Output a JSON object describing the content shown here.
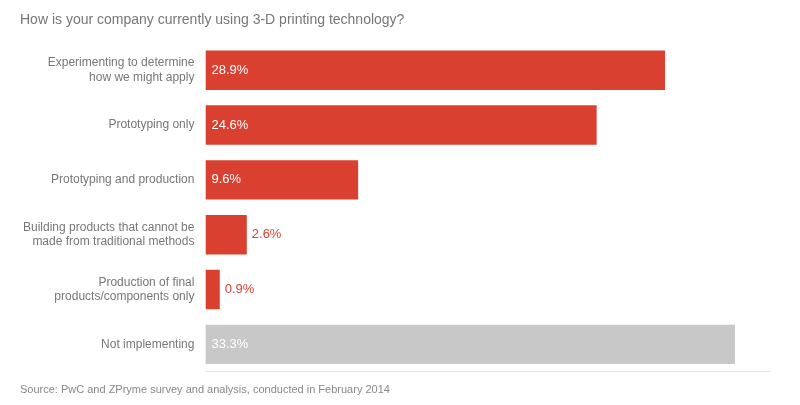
{
  "chart_data": {
    "type": "bar",
    "orientation": "horizontal",
    "title": "How is your company currently using 3-D printing technology?",
    "annotations": [
      "Source: PwC and ZPryme survey and analysis, conducted in February 2014"
    ],
    "categories": [
      "Experimenting to determine\nhow we might apply",
      "Prototyping only",
      "Prototyping and production",
      "Building products that cannot be\nmade from traditional methods",
      "Production of final\nproducts/components only",
      "Not implementing"
    ],
    "values": [
      28.9,
      24.6,
      9.6,
      2.6,
      0.9,
      33.3
    ],
    "value_labels": [
      "28.9%",
      "24.6%",
      "9.6%",
      "2.6%",
      "0.9%",
      "33.3%"
    ],
    "colors": [
      "#d94030",
      "#d94030",
      "#d94030",
      "#d94030",
      "#d94030",
      "#c8c8c8"
    ],
    "xlim": [
      0,
      35.5
    ],
    "grid": false,
    "tick_labels": "y",
    "data_labels": true
  }
}
